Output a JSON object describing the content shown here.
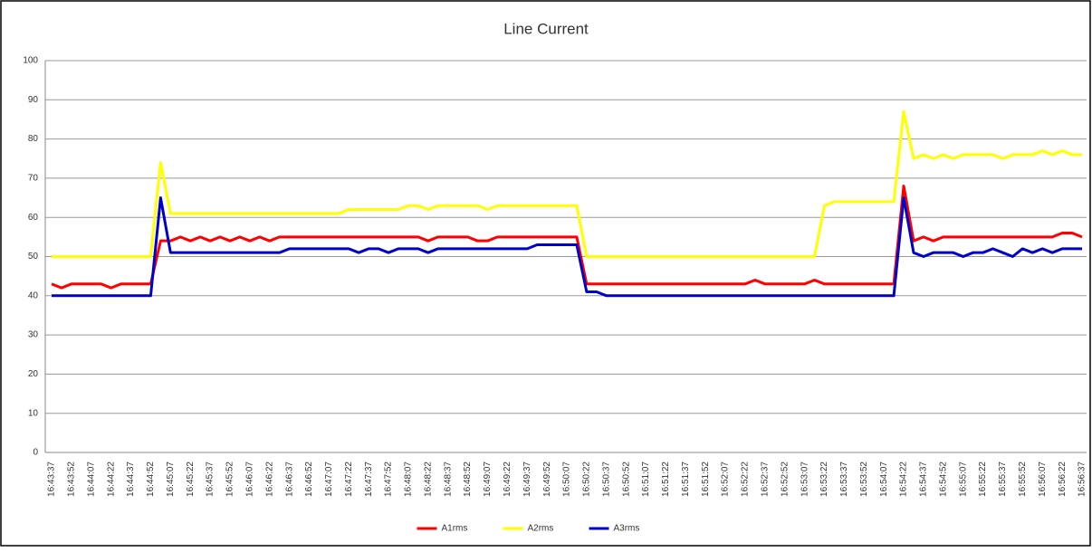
{
  "chart_data": {
    "type": "line",
    "title": "Line Current",
    "categories": [
      "16:43:37",
      null,
      "16:43:52",
      null,
      "16:44:07",
      null,
      "16:44:22",
      null,
      "16:44:37",
      null,
      "16:44:52",
      null,
      "16:45:07",
      null,
      "16:45:22",
      null,
      "16:45:37",
      null,
      "16:45:52",
      null,
      "16:46:07",
      null,
      "16:46:22",
      null,
      "16:46:37",
      null,
      "16:46:52",
      null,
      "16:47:07",
      null,
      "16:47:22",
      null,
      "16:47:37",
      null,
      "16:47:52",
      null,
      "16:48:07",
      null,
      "16:48:22",
      null,
      "16:48:37",
      null,
      "16:48:52",
      null,
      "16:49:07",
      null,
      "16:49:22",
      null,
      "16:49:37",
      null,
      "16:49:52",
      null,
      "16:50:07",
      null,
      "16:50:22",
      null,
      "16:50:37",
      null,
      "16:50:52",
      null,
      "16:51:07",
      null,
      "16:51:22",
      null,
      "16:51:37",
      null,
      "16:51:52",
      null,
      "16:52:07",
      null,
      "16:52:22",
      null,
      "16:52:37",
      null,
      "16:52:52",
      null,
      "16:53:07",
      null,
      "16:53:22",
      null,
      "16:53:37",
      null,
      "16:53:52",
      null,
      "16:54:07",
      null,
      "16:54:22",
      null,
      "16:54:37",
      null,
      "16:54:52",
      null,
      "16:55:07",
      null,
      "16:55:22",
      null,
      "16:55:37",
      null,
      "16:55:52",
      null,
      "16:56:07",
      null,
      "16:56:22",
      null,
      "16:56:37"
    ],
    "series": [
      {
        "name": "A1rms",
        "color": "#ff0000",
        "values": [
          43,
          42,
          43,
          43,
          43,
          43,
          42,
          43,
          43,
          43,
          43,
          54,
          54,
          55,
          54,
          55,
          54,
          55,
          54,
          55,
          54,
          55,
          54,
          55,
          55,
          55,
          55,
          55,
          55,
          55,
          55,
          55,
          55,
          55,
          55,
          55,
          55,
          55,
          54,
          55,
          55,
          55,
          55,
          54,
          54,
          55,
          55,
          55,
          55,
          55,
          55,
          55,
          55,
          55,
          43,
          43,
          43,
          43,
          43,
          43,
          43,
          43,
          43,
          43,
          43,
          43,
          43,
          43,
          43,
          43,
          43,
          44,
          43,
          43,
          43,
          43,
          43,
          44,
          43,
          43,
          43,
          43,
          43,
          43,
          43,
          43,
          68,
          54,
          55,
          54,
          55,
          55,
          55,
          55,
          55,
          55,
          55,
          55,
          55,
          55,
          55,
          55,
          56,
          56,
          55
        ]
      },
      {
        "name": "A2rms",
        "color": "#ffff00",
        "values": [
          50,
          50,
          50,
          50,
          50,
          50,
          50,
          50,
          50,
          50,
          50,
          74,
          61,
          61,
          61,
          61,
          61,
          61,
          61,
          61,
          61,
          61,
          61,
          61,
          61,
          61,
          61,
          61,
          61,
          61,
          62,
          62,
          62,
          62,
          62,
          62,
          63,
          63,
          62,
          63,
          63,
          63,
          63,
          63,
          62,
          63,
          63,
          63,
          63,
          63,
          63,
          63,
          63,
          63,
          50,
          50,
          50,
          50,
          50,
          50,
          50,
          50,
          50,
          50,
          50,
          50,
          50,
          50,
          50,
          50,
          50,
          50,
          50,
          50,
          50,
          50,
          50,
          50,
          63,
          64,
          64,
          64,
          64,
          64,
          64,
          64,
          87,
          75,
          76,
          75,
          76,
          75,
          76,
          76,
          76,
          76,
          75,
          76,
          76,
          76,
          77,
          76,
          77,
          76,
          76
        ]
      },
      {
        "name": "A3rms",
        "color": "#0000cc",
        "values": [
          40,
          40,
          40,
          40,
          40,
          40,
          40,
          40,
          40,
          40,
          40,
          65,
          51,
          51,
          51,
          51,
          51,
          51,
          51,
          51,
          51,
          51,
          51,
          51,
          52,
          52,
          52,
          52,
          52,
          52,
          52,
          51,
          52,
          52,
          51,
          52,
          52,
          52,
          51,
          52,
          52,
          52,
          52,
          52,
          52,
          52,
          52,
          52,
          52,
          53,
          53,
          53,
          53,
          53,
          41,
          41,
          40,
          40,
          40,
          40,
          40,
          40,
          40,
          40,
          40,
          40,
          40,
          40,
          40,
          40,
          40,
          40,
          40,
          40,
          40,
          40,
          40,
          40,
          40,
          40,
          40,
          40,
          40,
          40,
          40,
          40,
          65,
          51,
          50,
          51,
          51,
          51,
          50,
          51,
          51,
          52,
          51,
          50,
          52,
          51,
          52,
          51,
          52,
          52,
          52
        ]
      }
    ],
    "ylim": [
      0,
      100
    ],
    "yticks": [
      0,
      10,
      20,
      30,
      40,
      50,
      60,
      70,
      80,
      90,
      100
    ],
    "grid": true,
    "legend": "bottom"
  }
}
